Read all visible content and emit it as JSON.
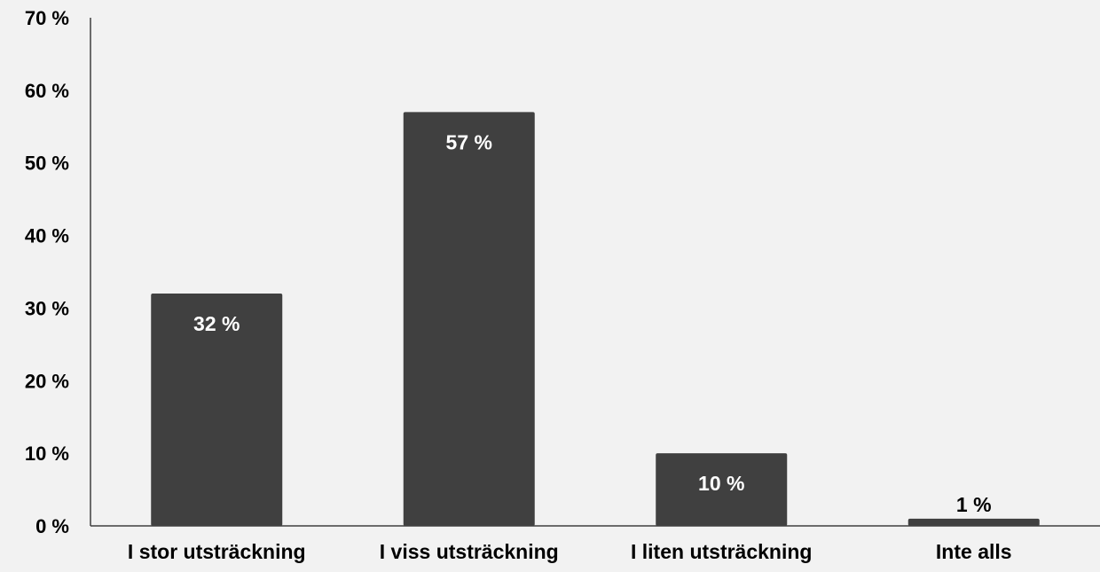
{
  "chart_data": {
    "type": "bar",
    "categories": [
      "I stor utsträckning",
      "I viss utsträckning",
      "I liten utsträckning",
      "Inte alls"
    ],
    "values": [
      32,
      57,
      10,
      1
    ],
    "data_labels": [
      "32 %",
      "57 %",
      "10 %",
      "1 %"
    ],
    "y_ticks": [
      0,
      10,
      20,
      30,
      40,
      50,
      60,
      70
    ],
    "y_tick_labels": [
      "0 %",
      "10 %",
      "20 %",
      "30 %",
      "40 %",
      "50 %",
      "60 %",
      "70 %"
    ],
    "ylim": [
      0,
      70
    ],
    "title": "",
    "xlabel": "",
    "ylabel": "",
    "grid": false,
    "legend": "none",
    "colors": {
      "bar": "#404040",
      "background": "#f2f2f2",
      "axis": "#404040",
      "text": "#000000",
      "label_inside": "#ffffff",
      "label_outside": "#000000"
    }
  }
}
